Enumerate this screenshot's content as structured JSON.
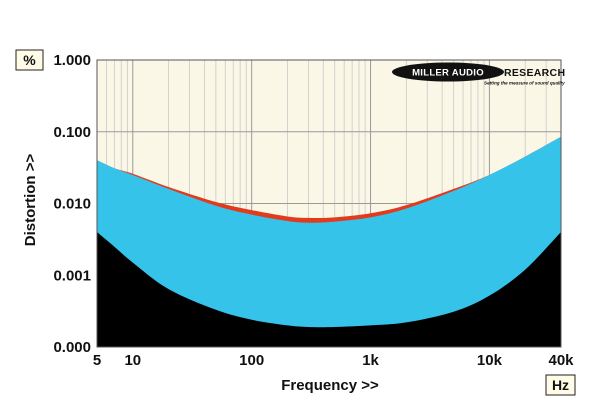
{
  "chart_data": {
    "type": "area",
    "xlabel": "Frequency >>",
    "ylabel": "Distortion >>",
    "y_unit": "%",
    "x_unit": "Hz",
    "x_scale": "log",
    "y_scale": "log",
    "xlim": [
      5,
      40000
    ],
    "ylim": [
      0.0001,
      1.0
    ],
    "x_ticks": [
      {
        "value": 5,
        "label": "5"
      },
      {
        "value": 10,
        "label": "10"
      },
      {
        "value": 100,
        "label": "100"
      },
      {
        "value": 1000,
        "label": "1k"
      },
      {
        "value": 10000,
        "label": "10k"
      },
      {
        "value": 40000,
        "label": "40k"
      }
    ],
    "y_ticks": [
      {
        "value": 0.0001,
        "label": "0.000"
      },
      {
        "value": 0.001,
        "label": "0.001"
      },
      {
        "value": 0.01,
        "label": "0.010"
      },
      {
        "value": 0.1,
        "label": "0.100"
      },
      {
        "value": 1.0,
        "label": "1.000"
      }
    ],
    "grid": true,
    "background_color": "#faf7e6",
    "x": [
      5,
      7,
      10,
      20,
      50,
      100,
      200,
      300,
      500,
      1000,
      2000,
      5000,
      10000,
      20000,
      40000
    ],
    "series": [
      {
        "color": "#e23a1d",
        "values": [
          0.04,
          0.031,
          0.026,
          0.017,
          0.0105,
          0.0081,
          0.0066,
          0.0063,
          0.0064,
          0.0073,
          0.0095,
          0.016,
          0.025,
          0.045,
          0.085
        ]
      },
      {
        "color": "#36c3ea",
        "values": [
          0.04,
          0.031,
          0.025,
          0.016,
          0.0093,
          0.007,
          0.0057,
          0.0054,
          0.0056,
          0.0064,
          0.0085,
          0.015,
          0.025,
          0.045,
          0.085
        ]
      },
      {
        "color": "#000000",
        "values": [
          0.004,
          0.0025,
          0.0015,
          0.00064,
          0.00033,
          0.00024,
          0.0002,
          0.00019,
          0.00019,
          0.0002,
          0.00022,
          0.00031,
          0.00052,
          0.0012,
          0.004
        ]
      }
    ]
  },
  "logo": {
    "brand": "MILLER AUDIO RESEARCH",
    "brand_left": "MILLER AUDIO",
    "brand_right": "RESEARCH",
    "tagline": "Setting the measure of sound quality"
  }
}
